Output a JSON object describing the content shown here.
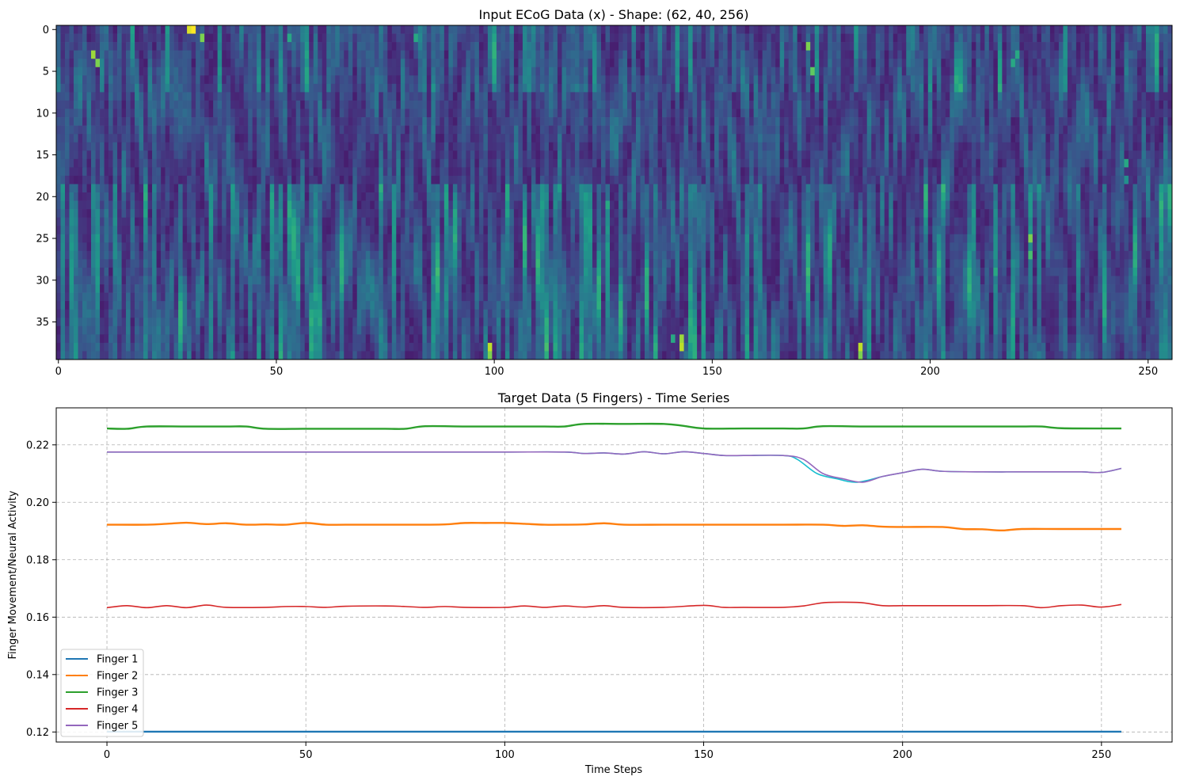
{
  "chart_data": [
    {
      "type": "heatmap",
      "title": "Input ECoG Data (x) - Shape: (62, 40, 256)",
      "xlabel": "",
      "ylabel": "",
      "rows": 40,
      "cols": 256,
      "xlim": [
        -0.5,
        255.5
      ],
      "ylim": [
        39.5,
        -0.5
      ],
      "colormap": "viridis",
      "xticks": [
        0,
        50,
        100,
        150,
        200,
        250
      ],
      "yticks": [
        0,
        5,
        10,
        15,
        20,
        25,
        30,
        35
      ],
      "hotspots": [
        {
          "row": 0,
          "col": 31,
          "value": 1.0
        },
        {
          "row": 0,
          "col": 30,
          "value": 0.95
        },
        {
          "row": 1,
          "col": 33,
          "value": 0.8
        },
        {
          "row": 3,
          "col": 8,
          "value": 0.85
        },
        {
          "row": 4,
          "col": 9,
          "value": 0.8
        },
        {
          "row": 2,
          "col": 172,
          "value": 0.8
        },
        {
          "row": 5,
          "col": 173,
          "value": 0.75
        },
        {
          "row": 1,
          "col": 53,
          "value": 0.6
        },
        {
          "row": 1,
          "col": 82,
          "value": 0.6
        },
        {
          "row": 4,
          "col": 219,
          "value": 0.6
        },
        {
          "row": 3,
          "col": 220,
          "value": 0.6
        },
        {
          "row": 25,
          "col": 223,
          "value": 0.8
        },
        {
          "row": 27,
          "col": 223,
          "value": 0.7
        },
        {
          "row": 29,
          "col": 215,
          "value": 0.6
        },
        {
          "row": 38,
          "col": 99,
          "value": 0.9
        },
        {
          "row": 39,
          "col": 99,
          "value": 0.8
        },
        {
          "row": 37,
          "col": 143,
          "value": 0.85
        },
        {
          "row": 38,
          "col": 143,
          "value": 0.9
        },
        {
          "row": 37,
          "col": 141,
          "value": 0.6
        },
        {
          "row": 38,
          "col": 184,
          "value": 0.9
        },
        {
          "row": 39,
          "col": 184,
          "value": 0.8
        },
        {
          "row": 21,
          "col": 126,
          "value": 0.6
        },
        {
          "row": 16,
          "col": 245,
          "value": 0.6
        },
        {
          "row": 18,
          "col": 245,
          "value": 0.5
        }
      ]
    },
    {
      "type": "line",
      "title": "Target Data (5 Fingers) - Time Series",
      "xlabel": "Time Steps",
      "ylabel": "Finger Movement/Neural Activity",
      "xlim": [
        -12.75,
        267.75
      ],
      "ylim": [
        0.1165,
        0.2329
      ],
      "xticks": [
        0,
        50,
        100,
        150,
        200,
        250
      ],
      "yticks": [
        0.12,
        0.14,
        0.16,
        0.18,
        0.2,
        0.22
      ],
      "grid": true,
      "legend_position": "lower-left",
      "series": [
        {
          "name": "Finger 1",
          "color": "#1f77b4",
          "x": [
            0,
            255
          ],
          "y": [
            0.1201,
            0.1201
          ]
        },
        {
          "name": "Finger 2",
          "color": "#ff7f0e",
          "x": [
            0,
            10,
            15,
            20,
            25,
            30,
            35,
            40,
            45,
            50,
            55,
            60,
            70,
            80,
            85,
            90,
            95,
            100,
            105,
            110,
            115,
            120,
            125,
            130,
            140,
            150,
            160,
            170,
            180,
            185,
            190,
            195,
            200,
            210,
            215,
            220,
            225,
            230,
            240,
            255
          ],
          "y": [
            0.1922,
            0.1922,
            0.1925,
            0.1929,
            0.1924,
            0.1927,
            0.1922,
            0.1923,
            0.1922,
            0.1928,
            0.1922,
            0.1922,
            0.1922,
            0.1922,
            0.1923,
            0.1928,
            0.1928,
            0.1928,
            0.1925,
            0.1922,
            0.1922,
            0.1923,
            0.1927,
            0.1922,
            0.1922,
            0.1922,
            0.1922,
            0.1922,
            0.1922,
            0.1918,
            0.192,
            0.1915,
            0.1914,
            0.1914,
            0.1907,
            0.1906,
            0.1902,
            0.1907,
            0.1907,
            0.1907
          ]
        },
        {
          "name": "Finger 3",
          "color": "#2ca02c",
          "x": [
            0,
            5,
            10,
            20,
            30,
            35,
            40,
            50,
            60,
            70,
            75,
            80,
            90,
            100,
            110,
            115,
            120,
            130,
            140,
            145,
            150,
            160,
            170,
            175,
            180,
            190,
            200,
            210,
            220,
            230,
            235,
            240,
            255
          ],
          "y": [
            0.2257,
            0.2256,
            0.2264,
            0.2264,
            0.2264,
            0.2264,
            0.2256,
            0.2256,
            0.2256,
            0.2256,
            0.2256,
            0.2265,
            0.2264,
            0.2264,
            0.2264,
            0.2264,
            0.2273,
            0.2273,
            0.2273,
            0.2266,
            0.2257,
            0.2257,
            0.2257,
            0.2257,
            0.2265,
            0.2264,
            0.2264,
            0.2264,
            0.2264,
            0.2264,
            0.2264,
            0.2258,
            0.2257
          ]
        },
        {
          "name": "Finger 4",
          "color": "#d62728",
          "x": [
            0,
            5,
            10,
            15,
            20,
            25,
            30,
            40,
            45,
            50,
            55,
            60,
            70,
            75,
            80,
            85,
            90,
            100,
            105,
            110,
            115,
            120,
            125,
            130,
            140,
            150,
            155,
            160,
            170,
            175,
            180,
            185,
            190,
            195,
            200,
            210,
            220,
            230,
            235,
            240,
            245,
            250,
            255
          ],
          "y": [
            0.1633,
            0.164,
            0.1633,
            0.164,
            0.1633,
            0.1642,
            0.1634,
            0.1634,
            0.1637,
            0.1637,
            0.1634,
            0.1638,
            0.1639,
            0.1637,
            0.1634,
            0.1637,
            0.1634,
            0.1634,
            0.1639,
            0.1634,
            0.1639,
            0.1635,
            0.164,
            0.1634,
            0.1634,
            0.1641,
            0.1634,
            0.1634,
            0.1634,
            0.1639,
            0.165,
            0.1652,
            0.165,
            0.164,
            0.164,
            0.164,
            0.164,
            0.164,
            0.1633,
            0.164,
            0.1642,
            0.1635,
            0.1644
          ]
        },
        {
          "name": "Finger 5",
          "color": "#9467bd",
          "x": [
            0,
            20,
            40,
            60,
            80,
            100,
            115,
            120,
            125,
            130,
            135,
            140,
            145,
            150,
            155,
            160,
            170,
            175,
            180,
            185,
            190,
            195,
            200,
            205,
            210,
            220,
            230,
            240,
            245,
            250,
            255
          ],
          "y": [
            0.2175,
            0.2175,
            0.2175,
            0.2175,
            0.2175,
            0.2175,
            0.2175,
            0.217,
            0.2172,
            0.2168,
            0.2176,
            0.2169,
            0.2176,
            0.217,
            0.2163,
            0.2163,
            0.2163,
            0.215,
            0.21,
            0.2082,
            0.207,
            0.209,
            0.2103,
            0.2115,
            0.2108,
            0.2106,
            0.2106,
            0.2106,
            0.2106,
            0.2104,
            0.2118
          ]
        }
      ],
      "overlay_series_names": [
        "Finger 1 (teal overlay)"
      ]
    }
  ]
}
